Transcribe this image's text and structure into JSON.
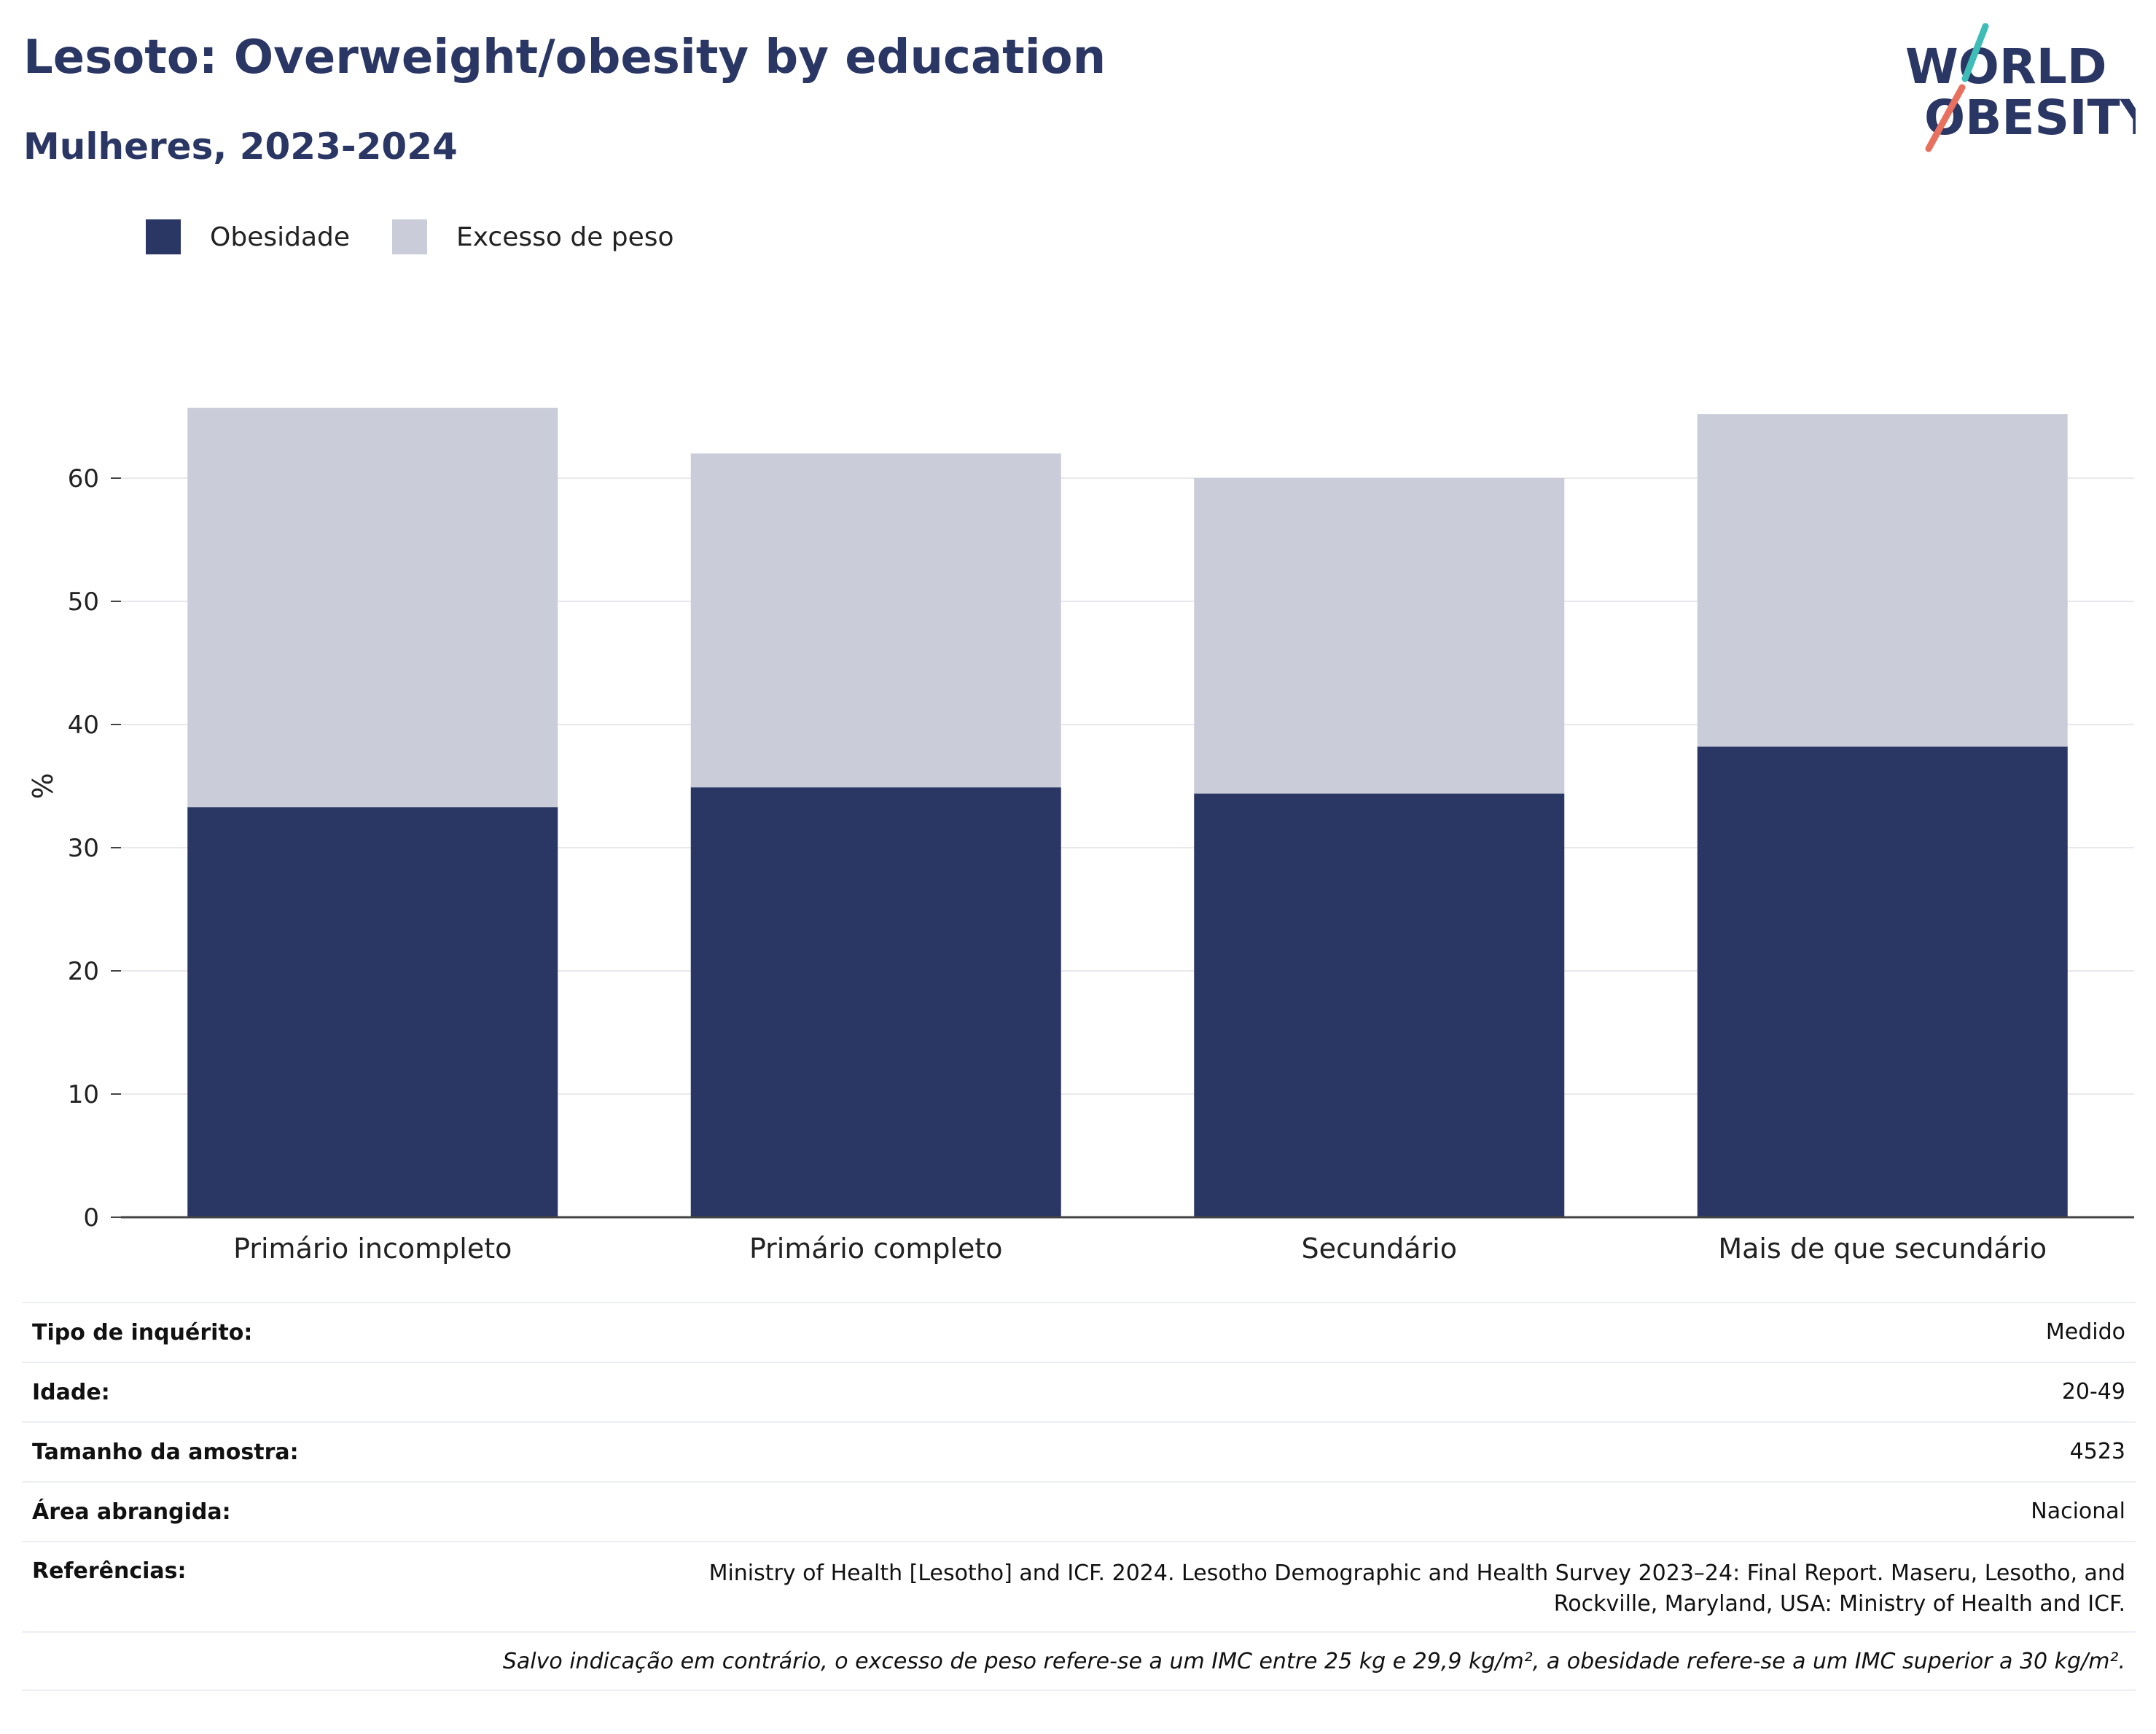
{
  "header": {
    "title": "Lesoto: Overweight/obesity by education",
    "subtitle": "Mulheres, 2023-2024"
  },
  "logo": {
    "line1": "WORLD",
    "line2": "OBESITY"
  },
  "colors": {
    "obesity": "#2a3663",
    "overweight": "#cacdd9",
    "title": "#2a3663",
    "logo_teal": "#3dbdb6",
    "logo_coral": "#e8705f"
  },
  "legend": [
    {
      "label": "Obesidade",
      "color": "#2a3663"
    },
    {
      "label": "Excesso de peso",
      "color": "#cacdd9"
    }
  ],
  "chart_data": {
    "type": "bar",
    "stacked": true,
    "categories": [
      "Primário incompleto",
      "Primário completo",
      "Secundário",
      "Mais de que secundário"
    ],
    "series": [
      {
        "name": "Obesidade",
        "values": [
          33.3,
          34.9,
          34.4,
          38.2
        ]
      },
      {
        "name": "Excesso de peso",
        "values": [
          32.4,
          27.1,
          25.6,
          27.0
        ]
      }
    ],
    "ylabel": "%",
    "ylim": [
      0,
      70
    ],
    "yticks": [
      0,
      10,
      20,
      30,
      40,
      50,
      60
    ],
    "grid": true,
    "legend_position": "top-left"
  },
  "info": {
    "survey_type": {
      "label": "Tipo de inquérito:",
      "value": "Medido"
    },
    "age": {
      "label": "Idade:",
      "value": "20-49"
    },
    "sample_size": {
      "label": "Tamanho da amostra:",
      "value": "4523"
    },
    "area": {
      "label": "Área abrangida:",
      "value": "Nacional"
    },
    "references": {
      "label": "Referências:",
      "value_line1": "Ministry of Health [Lesotho] and ICF. 2024. Lesotho Demographic and Health Survey 2023–24: Final Report. Maseru, Lesotho, and",
      "value_line2": "Rockville, Maryland, USA: Ministry of Health and ICF."
    },
    "note": "Salvo indicação em contrário, o excesso de peso refere-se a um IMC entre 25 kg e 29,9 kg/m², a obesidade refere-se a um IMC superior a 30 kg/m²."
  }
}
